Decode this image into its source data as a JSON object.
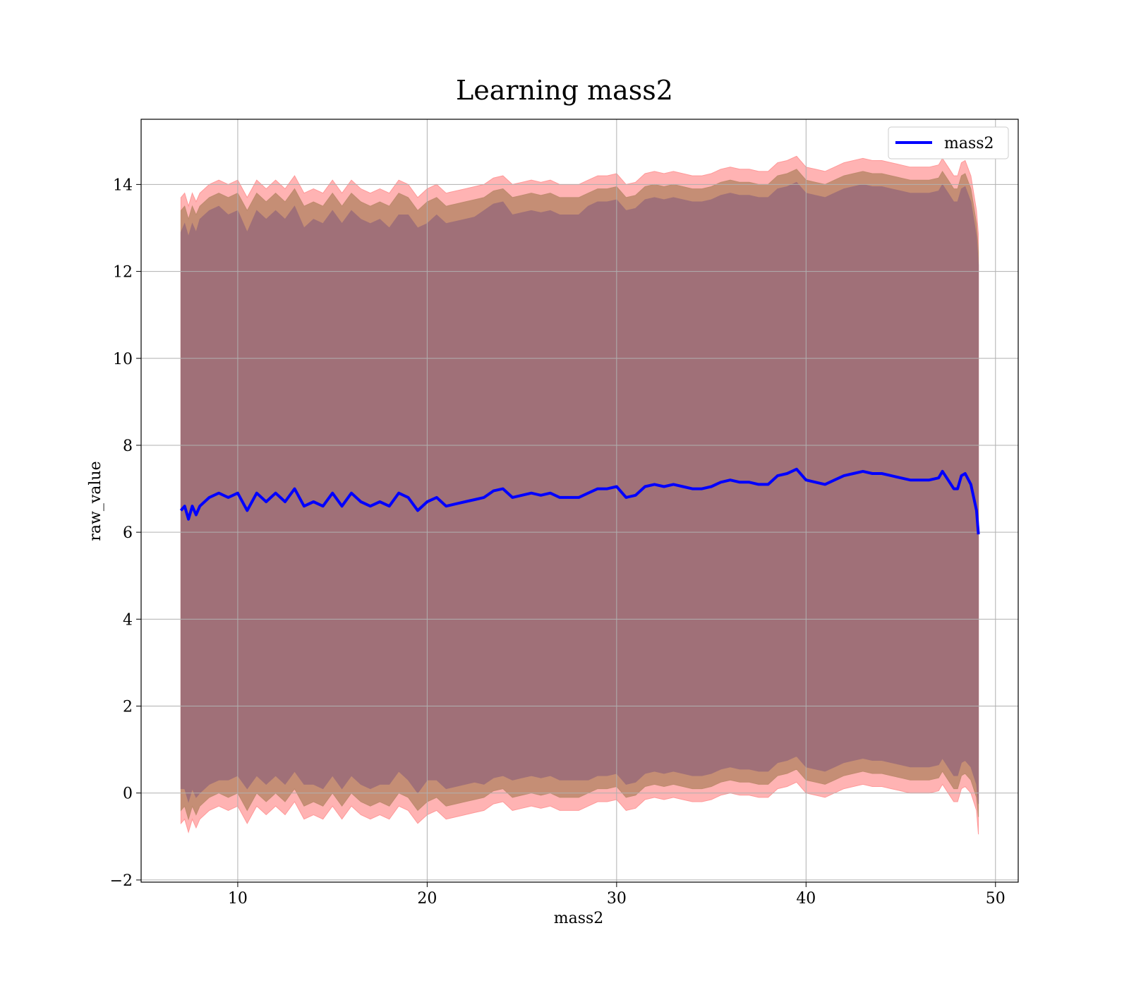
{
  "chart_data": {
    "type": "line",
    "title": "Learning mass2",
    "xlabel": "mass2",
    "ylabel": "raw_value",
    "xlim": [
      4.9,
      51.2
    ],
    "ylim": [
      -2.05,
      15.5
    ],
    "x_ticks": [
      10,
      20,
      30,
      40,
      50
    ],
    "y_ticks": [
      -2,
      0,
      2,
      4,
      6,
      8,
      10,
      12,
      14
    ],
    "x_tick_labels": [
      "10",
      "20",
      "30",
      "40",
      "50"
    ],
    "y_tick_labels": [
      "−2",
      "0",
      "2",
      "4",
      "6",
      "8",
      "10",
      "12",
      "14"
    ],
    "grid": true,
    "legend_position": "top-right",
    "colors": {
      "line": "#0000ff",
      "band_outer": "#ff9999",
      "band_mid": "#bf8a6e",
      "band_inner": "#a07078",
      "grid": "#b0b0b0"
    },
    "series": [
      {
        "name": "mass2",
        "x": [
          7.0,
          7.2,
          7.4,
          7.6,
          7.8,
          8.0,
          8.5,
          9.0,
          9.5,
          10.0,
          10.5,
          11.0,
          11.5,
          12.0,
          12.5,
          13.0,
          13.5,
          14.0,
          14.5,
          15.0,
          15.5,
          16.0,
          16.5,
          17.0,
          17.5,
          18.0,
          18.5,
          19.0,
          19.5,
          20.0,
          20.5,
          21.0,
          21.5,
          22.0,
          22.5,
          23.0,
          23.5,
          24.0,
          24.5,
          25.0,
          25.5,
          26.0,
          26.5,
          27.0,
          27.5,
          28.0,
          28.5,
          29.0,
          29.5,
          30.0,
          30.5,
          31.0,
          31.5,
          32.0,
          32.5,
          33.0,
          33.5,
          34.0,
          34.5,
          35.0,
          35.5,
          36.0,
          36.5,
          37.0,
          37.5,
          38.0,
          38.5,
          39.0,
          39.5,
          40.0,
          40.5,
          41.0,
          41.5,
          42.0,
          42.5,
          43.0,
          43.5,
          44.0,
          44.5,
          45.0,
          45.5,
          46.0,
          46.5,
          47.0,
          47.2,
          47.5,
          47.8,
          48.0,
          48.2,
          48.4,
          48.7,
          49.0,
          49.1
        ],
        "mean": [
          6.5,
          6.6,
          6.3,
          6.6,
          6.4,
          6.6,
          6.8,
          6.9,
          6.8,
          6.9,
          6.5,
          6.9,
          6.7,
          6.9,
          6.7,
          7.0,
          6.6,
          6.7,
          6.6,
          6.9,
          6.6,
          6.9,
          6.7,
          6.6,
          6.7,
          6.6,
          6.9,
          6.8,
          6.5,
          6.7,
          6.8,
          6.6,
          6.65,
          6.7,
          6.75,
          6.8,
          6.95,
          7.0,
          6.8,
          6.85,
          6.9,
          6.85,
          6.9,
          6.8,
          6.8,
          6.8,
          6.9,
          7.0,
          7.0,
          7.05,
          6.8,
          6.85,
          7.05,
          7.1,
          7.05,
          7.1,
          7.05,
          7.0,
          7.0,
          7.05,
          7.15,
          7.2,
          7.15,
          7.15,
          7.1,
          7.1,
          7.3,
          7.35,
          7.45,
          7.2,
          7.15,
          7.1,
          7.2,
          7.3,
          7.35,
          7.4,
          7.35,
          7.35,
          7.3,
          7.25,
          7.2,
          7.2,
          7.2,
          7.25,
          7.4,
          7.2,
          7.0,
          7.0,
          7.3,
          7.35,
          7.1,
          6.5,
          5.95
        ],
        "half_width_inner": [
          6.4,
          6.5,
          6.5,
          6.5,
          6.5,
          6.6,
          6.6,
          6.6,
          6.5,
          6.5,
          6.4,
          6.5,
          6.5,
          6.5,
          6.5,
          6.5,
          6.4,
          6.5,
          6.5,
          6.5,
          6.5,
          6.5,
          6.5,
          6.5,
          6.5,
          6.4,
          6.4,
          6.5,
          6.5,
          6.4,
          6.5,
          6.5,
          6.5,
          6.5,
          6.5,
          6.6,
          6.6,
          6.6,
          6.5,
          6.5,
          6.5,
          6.5,
          6.5,
          6.5,
          6.5,
          6.5,
          6.6,
          6.6,
          6.6,
          6.6,
          6.6,
          6.6,
          6.6,
          6.6,
          6.6,
          6.6,
          6.6,
          6.6,
          6.6,
          6.6,
          6.6,
          6.6,
          6.6,
          6.6,
          6.6,
          6.6,
          6.6,
          6.6,
          6.6,
          6.6,
          6.6,
          6.6,
          6.6,
          6.6,
          6.6,
          6.6,
          6.6,
          6.6,
          6.6,
          6.6,
          6.6,
          6.6,
          6.6,
          6.6,
          6.6,
          6.6,
          6.6,
          6.6,
          6.6,
          6.6,
          6.5,
          6.3,
          6.2
        ],
        "half_width_mid": [
          6.9,
          6.9,
          6.9,
          6.9,
          6.9,
          6.9,
          6.9,
          6.9,
          6.9,
          6.9,
          6.9,
          6.9,
          6.9,
          6.9,
          6.9,
          6.9,
          6.9,
          6.9,
          6.9,
          6.9,
          6.9,
          6.9,
          6.9,
          6.9,
          6.9,
          6.9,
          6.9,
          6.9,
          6.9,
          6.9,
          6.9,
          6.9,
          6.9,
          6.9,
          6.9,
          6.9,
          6.9,
          6.9,
          6.9,
          6.9,
          6.9,
          6.9,
          6.9,
          6.9,
          6.9,
          6.9,
          6.9,
          6.9,
          6.9,
          6.9,
          6.9,
          6.9,
          6.9,
          6.9,
          6.9,
          6.9,
          6.9,
          6.9,
          6.9,
          6.9,
          6.9,
          6.9,
          6.9,
          6.9,
          6.9,
          6.9,
          6.9,
          6.9,
          6.9,
          6.9,
          6.9,
          6.9,
          6.9,
          6.9,
          6.9,
          6.9,
          6.9,
          6.9,
          6.9,
          6.9,
          6.9,
          6.9,
          6.9,
          6.9,
          6.9,
          6.9,
          6.9,
          6.9,
          6.9,
          6.9,
          6.8,
          6.6,
          6.5
        ],
        "half_width_outer": [
          7.2,
          7.2,
          7.2,
          7.2,
          7.2,
          7.2,
          7.2,
          7.2,
          7.2,
          7.2,
          7.2,
          7.2,
          7.2,
          7.2,
          7.2,
          7.2,
          7.2,
          7.2,
          7.2,
          7.2,
          7.2,
          7.2,
          7.2,
          7.2,
          7.2,
          7.2,
          7.2,
          7.2,
          7.2,
          7.2,
          7.2,
          7.2,
          7.2,
          7.2,
          7.2,
          7.2,
          7.2,
          7.2,
          7.2,
          7.2,
          7.2,
          7.2,
          7.2,
          7.2,
          7.2,
          7.2,
          7.2,
          7.2,
          7.2,
          7.2,
          7.2,
          7.2,
          7.2,
          7.2,
          7.2,
          7.2,
          7.2,
          7.2,
          7.2,
          7.2,
          7.2,
          7.2,
          7.2,
          7.2,
          7.2,
          7.2,
          7.2,
          7.2,
          7.2,
          7.2,
          7.2,
          7.2,
          7.2,
          7.2,
          7.2,
          7.2,
          7.2,
          7.2,
          7.2,
          7.2,
          7.2,
          7.2,
          7.2,
          7.2,
          7.2,
          7.2,
          7.2,
          7.2,
          7.2,
          7.2,
          7.1,
          6.9,
          6.9
        ]
      }
    ]
  }
}
